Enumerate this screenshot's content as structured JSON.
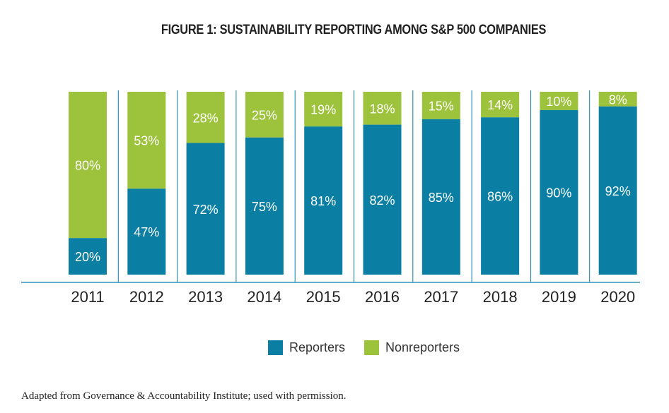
{
  "chart_data": {
    "type": "bar",
    "stacked": true,
    "title": "FIGURE 1: SUSTAINABILITY REPORTING AMONG S&P 500 COMPANIES",
    "categories": [
      "2011",
      "2012",
      "2013",
      "2014",
      "2015",
      "2016",
      "2017",
      "2018",
      "2019",
      "2020"
    ],
    "series": [
      {
        "name": "Reporters",
        "color": "#0a7fa3",
        "values": [
          20,
          47,
          72,
          75,
          81,
          82,
          85,
          86,
          90,
          92
        ]
      },
      {
        "name": "Nonreporters",
        "color": "#9dc23b",
        "values": [
          80,
          53,
          28,
          25,
          19,
          18,
          15,
          14,
          10,
          8
        ]
      }
    ],
    "ylim": [
      0,
      100
    ],
    "legend": "bottom-center"
  },
  "footnote": "Adapted from Governance & Accountability Institute; used with permission."
}
